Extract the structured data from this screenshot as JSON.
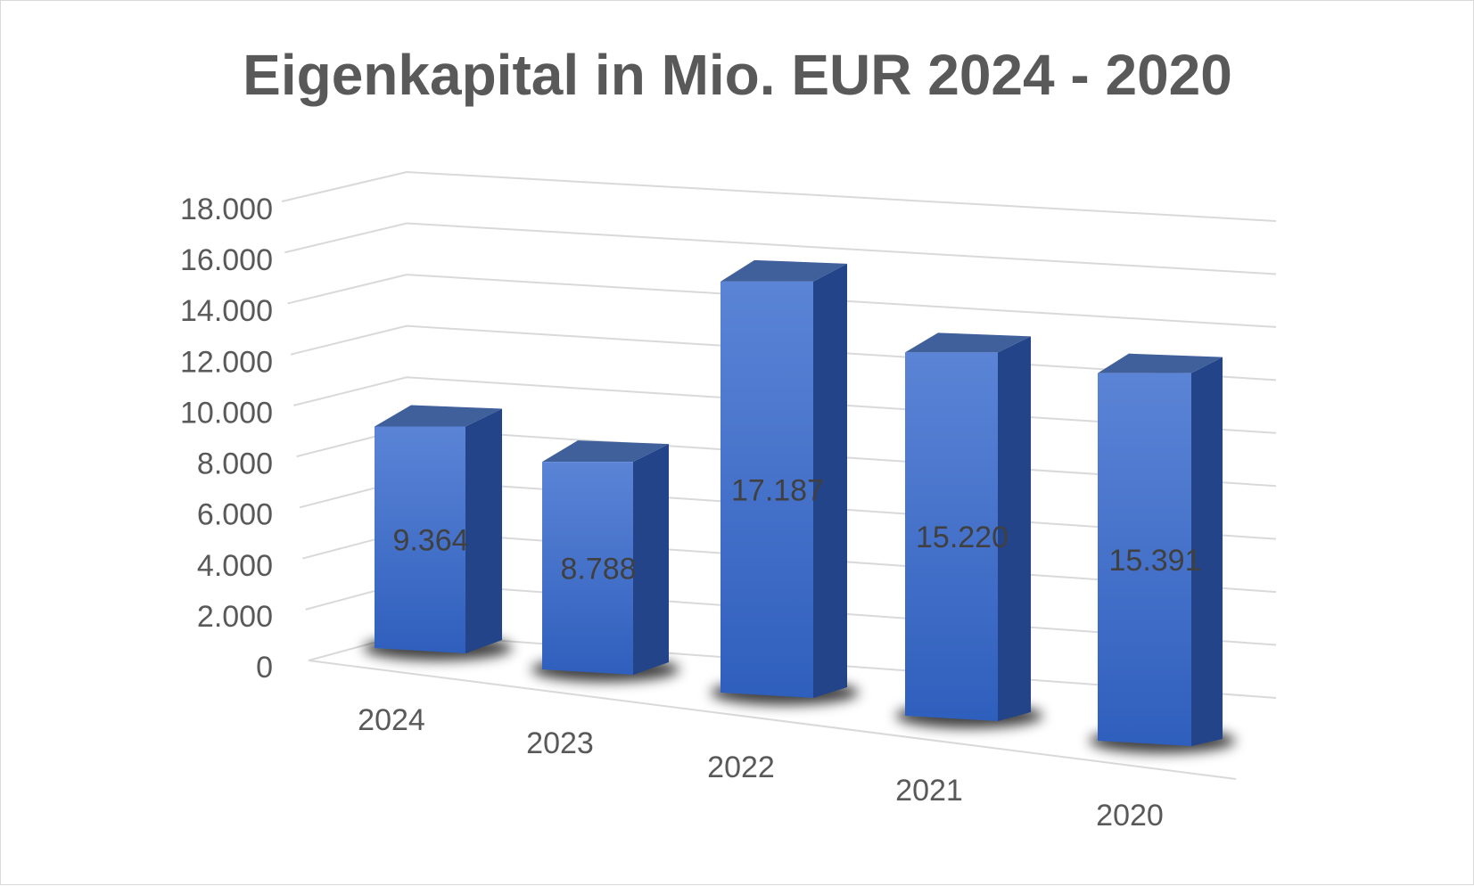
{
  "chart_data": {
    "type": "bar",
    "title": "Eigenkapital in Mio. EUR 2024 - 2020",
    "categories": [
      "2024",
      "2023",
      "2022",
      "2021",
      "2020"
    ],
    "values": [
      9364,
      8788,
      17187,
      15220,
      15391
    ],
    "data_labels": [
      "9.364",
      "8.788",
      "17.187",
      "15.220",
      "15.391"
    ],
    "ylim": [
      0,
      18000
    ],
    "y_ticks": [
      "0",
      "2.000",
      "4.000",
      "6.000",
      "8.000",
      "10.000",
      "12.000",
      "14.000",
      "16.000",
      "18.000"
    ],
    "grid": true,
    "legend": "none",
    "style": "3d-column"
  },
  "colors": {
    "title": "#595959",
    "axis_text": "#595959",
    "data_label": "#404040",
    "grid": "#d9d9d9",
    "bar_front_top": "#5b84d6",
    "bar_front_bottom": "#2f5fbd",
    "bar_side": "#24448a",
    "bar_top": "#40609c"
  }
}
